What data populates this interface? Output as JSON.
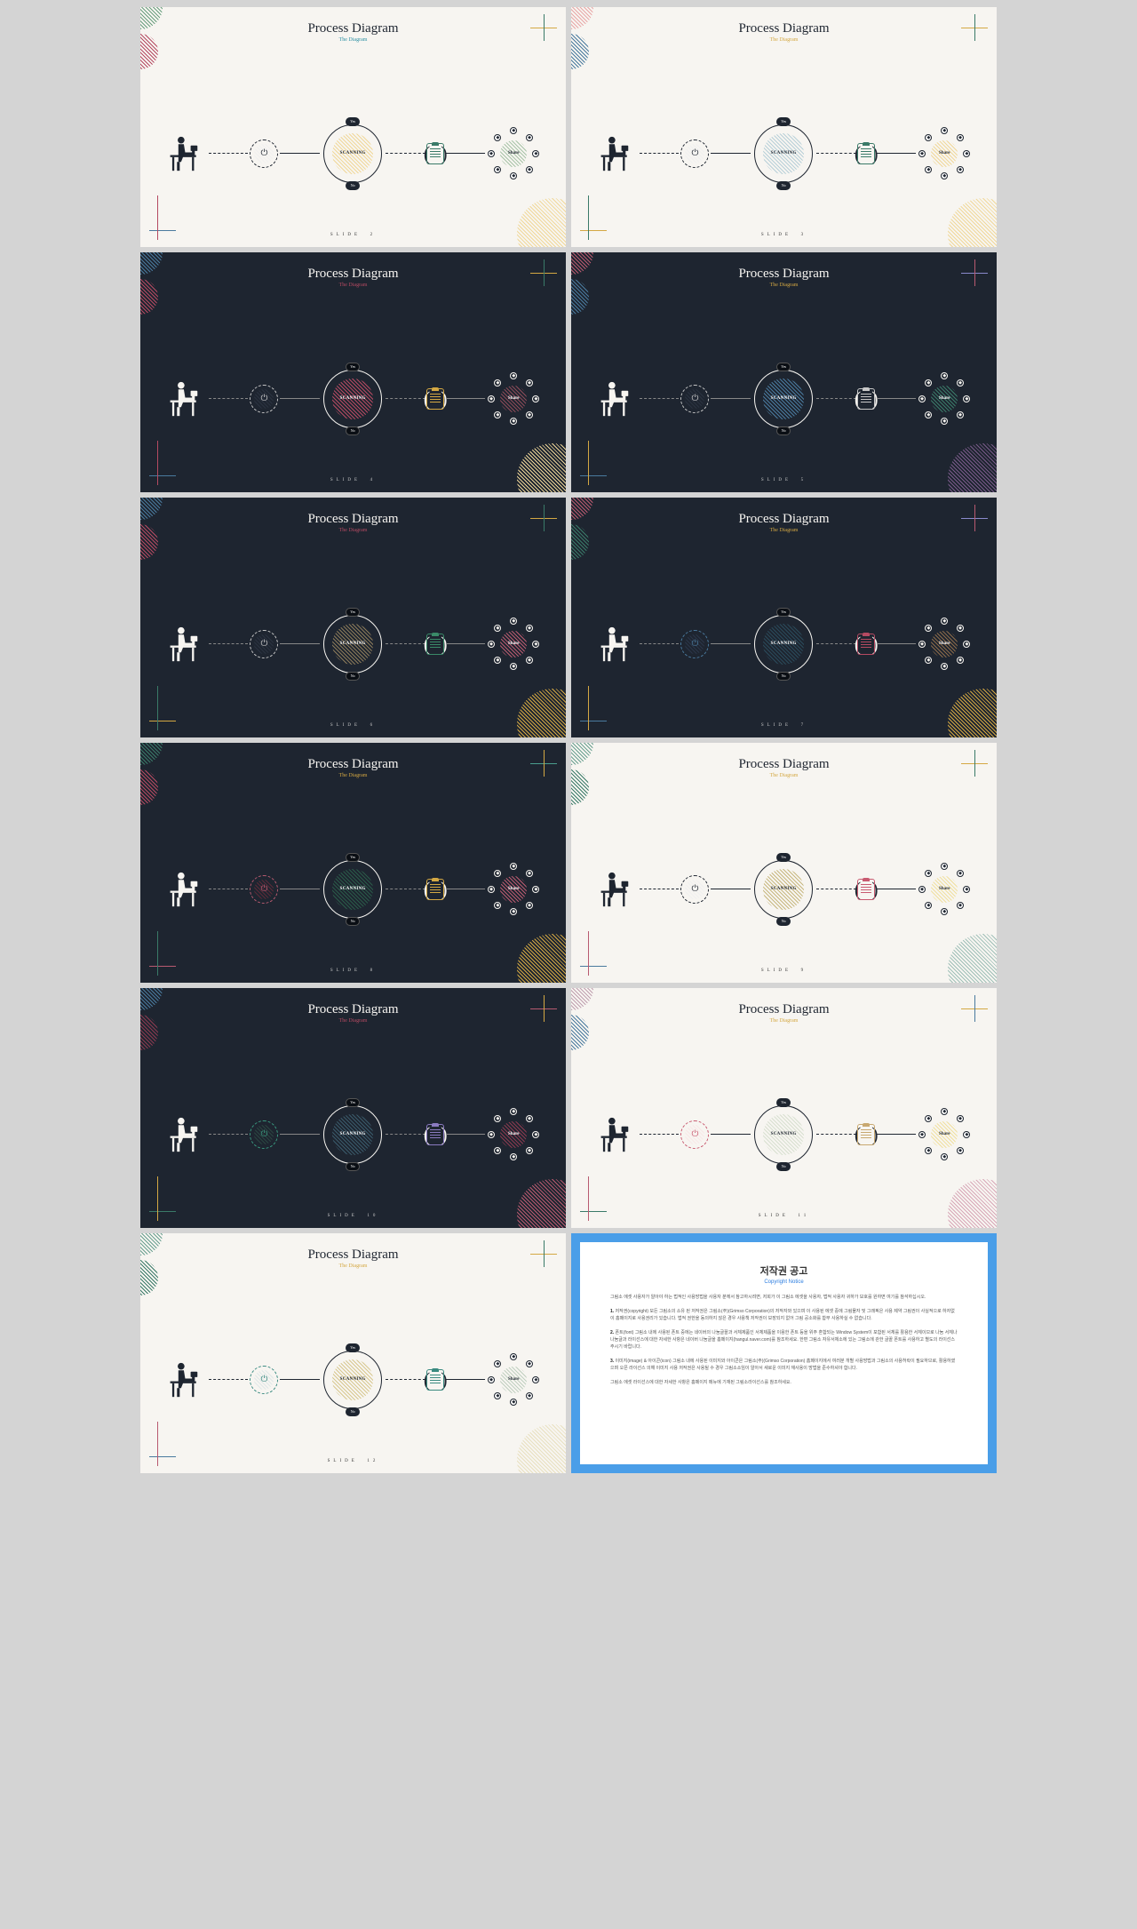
{
  "common": {
    "title": "Process Diagram",
    "subtitle": "The Diagram",
    "scanning_label": "SCANNING",
    "share_label": "Share",
    "yes_label": "Yes",
    "no_label": "No",
    "footer_prefix": "SLIDE"
  },
  "slides": [
    {
      "theme": "light",
      "num": "2",
      "subtitle_color": "#2b8fa3",
      "deco_tl": "#6a9e7e",
      "deco_tl2": "#b54a62",
      "deco_br": "#f0d89a",
      "cross_h": "#d4a843",
      "cross_v": "#3a7a68",
      "cross2_h": "#4a7a9e",
      "cross2_v": "#b54a62",
      "power_bg": "#f0f0f0",
      "power_fg": "#1e2530",
      "scan_bg": "#f0d89a",
      "clip_color": "#3a7a68",
      "share_bg": "#a8c4a8"
    },
    {
      "theme": "light",
      "num": "3",
      "subtitle_color": "#d4a843",
      "deco_tl": "#e8a8a8",
      "deco_tl2": "#4a7a9e",
      "deco_br": "#f0d89a",
      "cross_h": "#d4a843",
      "cross_v": "#3a7a68",
      "cross2_h": "#d4a843",
      "cross2_v": "#3a7a68",
      "power_bg": "#f0f0f0",
      "power_fg": "#1e2530",
      "scan_bg": "#b8d0d8",
      "clip_color": "#3a7a68",
      "share_bg": "#f0d89a"
    },
    {
      "theme": "dark",
      "num": "4",
      "subtitle_color": "#b54a62",
      "deco_tl": "#4a7a9e",
      "deco_tl2": "#b54a62",
      "deco_br": "#f0d89a",
      "cross_h": "#d4a843",
      "cross_v": "#3a7a68",
      "cross2_h": "#4a7a9e",
      "cross2_v": "#b54a62",
      "power_bg": "#2a3240",
      "power_fg": "#c8c8c8",
      "scan_bg": "#b54a62",
      "clip_color": "#d4a843",
      "share_bg": "#8a4a58"
    },
    {
      "theme": "dark",
      "num": "5",
      "subtitle_color": "#d4a843",
      "deco_tl": "#b85a70",
      "deco_tl2": "#4a7a9e",
      "deco_br": "#7a5a8a",
      "cross_h": "#8a8acc",
      "cross_v": "#b85a70",
      "cross2_h": "#4a7a9e",
      "cross2_v": "#d4a843",
      "power_bg": "#2a3240",
      "power_fg": "#c8c8c8",
      "scan_bg": "#4a7a9e",
      "clip_color": "#c8c8c8",
      "share_bg": "#3a7a68"
    },
    {
      "theme": "dark",
      "num": "6",
      "subtitle_color": "#b54a62",
      "deco_tl": "#4a7a9e",
      "deco_tl2": "#b54a62",
      "deco_br": "#d4a843",
      "cross_h": "#d4a843",
      "cross_v": "#3a7a68",
      "cross2_h": "#d4a843",
      "cross2_v": "#3a7a68",
      "power_bg": "#2a3240",
      "power_fg": "#c8c8c8",
      "scan_bg": "#8a7a5a",
      "clip_color": "#3a8a68",
      "share_bg": "#b85a70"
    },
    {
      "theme": "dark",
      "num": "7",
      "subtitle_color": "#d4a843",
      "deco_tl": "#b85a70",
      "deco_tl2": "#3a7a68",
      "deco_br": "#d4a843",
      "cross_h": "#8a8acc",
      "cross_v": "#b85a70",
      "cross2_h": "#4a7a9e",
      "cross2_v": "#d4a843",
      "power_bg": "#2a3548",
      "power_fg": "#4a7a9e",
      "scan_bg": "#2a4a5a",
      "clip_color": "#b54a62",
      "share_bg": "#8a6a4a"
    },
    {
      "theme": "dark",
      "num": "8",
      "subtitle_color": "#d4a843",
      "deco_tl": "#3a7a68",
      "deco_tl2": "#b54a62",
      "deco_br": "#d4a843",
      "cross_h": "#4a9e8e",
      "cross_v": "#d4a843",
      "cross2_h": "#b85a70",
      "cross2_v": "#3a7a68",
      "power_bg": "#5a2a38",
      "power_fg": "#b85a70",
      "scan_bg": "#2a5a48",
      "clip_color": "#d4a843",
      "share_bg": "#b85a70"
    },
    {
      "theme": "light",
      "num": "9",
      "subtitle_color": "#d4a843",
      "deco_tl": "#6aa090",
      "deco_tl2": "#3a7a68",
      "deco_br": "#a0c0b8",
      "cross_h": "#d4a843",
      "cross_v": "#3a7a68",
      "cross2_h": "#4a7a9e",
      "cross2_v": "#b85a70",
      "power_bg": "#f0f0f0",
      "power_fg": "#1e2530",
      "scan_bg": "#c8b880",
      "clip_color": "#c85a70",
      "share_bg": "#f0e0a0"
    },
    {
      "theme": "dark",
      "num": "10",
      "subtitle_color": "#b54a62",
      "deco_tl": "#4a7a9e",
      "deco_tl2": "#8a3a50",
      "deco_br": "#b85a70",
      "cross_h": "#b85a70",
      "cross_v": "#d4a843",
      "cross2_h": "#3a7a68",
      "cross2_v": "#d4a843",
      "power_bg": "#2a4540",
      "power_fg": "#3a9a80",
      "scan_bg": "#3a5a6a",
      "clip_color": "#8a7ac0",
      "share_bg": "#8a3a50"
    },
    {
      "theme": "light",
      "num": "11",
      "subtitle_color": "#d4a843",
      "deco_tl": "#c0a0b0",
      "deco_tl2": "#4a7a9e",
      "deco_br": "#d8a8b8",
      "cross_h": "#d4a843",
      "cross_v": "#4a7a9e",
      "cross2_h": "#3a7a68",
      "cross2_v": "#b85a70",
      "power_bg": "#f8e8e8",
      "power_fg": "#c85a70",
      "scan_bg": "#d8e0d0",
      "clip_color": "#c8a870",
      "share_bg": "#f0e0a0"
    },
    {
      "theme": "light",
      "num": "12",
      "subtitle_color": "#d4a843",
      "deco_tl": "#6aa090",
      "deco_tl2": "#3a7a68",
      "deco_br": "#e8e0c0",
      "cross_h": "#d4a843",
      "cross_v": "#3a7a68",
      "cross2_h": "#4a7a9e",
      "cross2_v": "#b85a70",
      "power_bg": "#e0e8e8",
      "power_fg": "#3a8a80",
      "scan_bg": "#d8c890",
      "clip_color": "#3a8a80",
      "share_bg": "#c0d0c0"
    }
  ],
  "copyright": {
    "border_color": "#4a9ee8",
    "title": "저작권 공고",
    "subtitle": "Copyright Notice",
    "paragraphs": [
      "그림소 에셋 사용자가 알아야 하는 법적인 사용방법을 사용자 분께서 참고하시려면, 저희가 이 그림소 에셋을 사용자, 법적 사용자 귀하가 보호를 원하면 여기를 참석하십시오.",
      "1. 저작권(copyright) 모든 그림소의 소유 된 저작권은 그림소(주)(Grimso Corporation)의 저작자와 있으며 이 사용된 에셋 중에 그림물자 및 그래픽은 사용 제약 그림권이 사실적으로 하자없이 홈페이지로 사용권리가 있습니다. 법적 권한을 동의하지 않은 경우 사용책 저작권이 보장되지 없어 그림 공소화를 합부 사용하실 수 없습니다.",
      "2. 폰트(font) 그림소 내에 사용된 폰트 중에는 네이버의 나눔글꼴과 서체제품인 서체제품을 이용한 폰트 등을 위주 혼합되는 Window System이 포함된 서체를 활용한 서체이므로 나눔 서체나 나눔글과 라이선스에 대한 자세한 사항은 네이버 나눔글을 홈페이지(hangul.naver.com)를 참조하세요. 한편 그림소 자유서체소에 있는 그림소에 관한 글꼴 폰트를 사용하고 별도의 라이선스 주시기 바랍니다.",
      "3. 이미지(image) & 아이콘(icon) 그림소 내에 사용된 이미지와 아이콘은 그림소(주)(Grimso Corporation) 홈페이지에서 여러분 개별 사용방법과 그림소의 사용허락이 필요하므로, 활용하였으며 오픈 라이선스 의해 이미지 사용 저작권은 사용될 수 경우 그림소소임이 알아서 새로운 이미지 재사용이 방법을 준수하셔야 합니다.",
      "그림소 에셋 라이선스에 대한 자세한 사항은 홈페이지 메뉴에 기재된 그림소라이선스를 참조하세요."
    ]
  }
}
